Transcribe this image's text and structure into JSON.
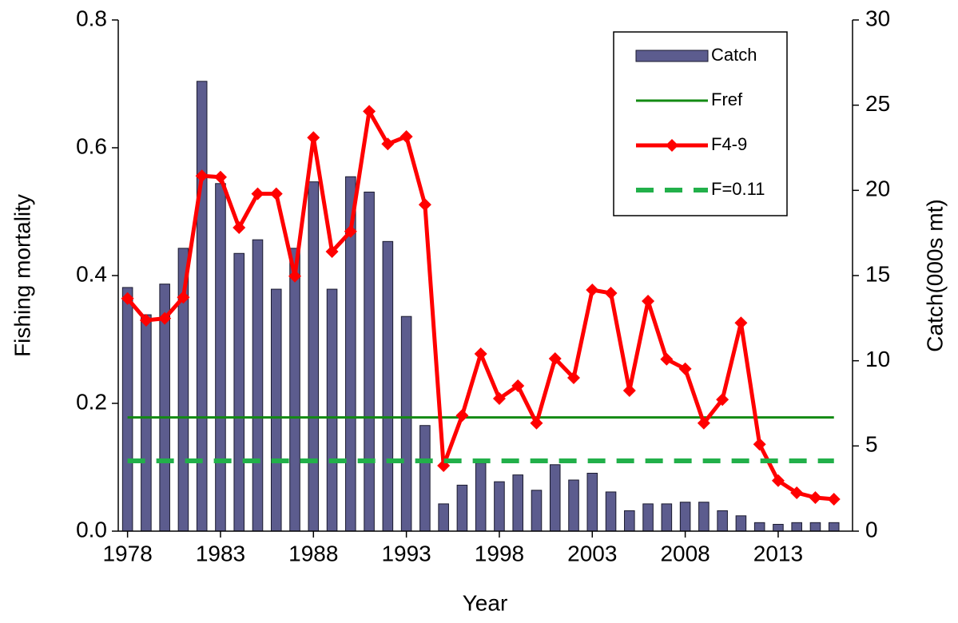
{
  "chart_data": {
    "type": "combo",
    "x_label": "Year",
    "y_label": "Fishing mortality",
    "y2_label": "Catch(000s mt)",
    "x": [
      1978,
      1979,
      1980,
      1981,
      1982,
      1983,
      1984,
      1985,
      1986,
      1987,
      1988,
      1989,
      1990,
      1991,
      1992,
      1993,
      1994,
      1995,
      1996,
      1997,
      1998,
      1999,
      2000,
      2001,
      2002,
      2003,
      2004,
      2005,
      2006,
      2007,
      2008,
      2009,
      2010,
      2011,
      2012,
      2013,
      2014,
      2015,
      2016
    ],
    "xlim": [
      1977.5,
      2017
    ],
    "xticks": [
      1978,
      1983,
      1988,
      1993,
      1998,
      2003,
      2008,
      2013
    ],
    "ylim": [
      0,
      0.8
    ],
    "yticks": [
      {
        "value": 0,
        "label": "0.0"
      },
      0.2,
      0.4,
      0.6,
      0.8
    ],
    "y2lim": [
      0,
      30
    ],
    "y2ticks": [
      0,
      5,
      10,
      15,
      20,
      25,
      30
    ],
    "legend": "upper right",
    "series": [
      {
        "name": "Catch",
        "type": "bar",
        "axis": "y2",
        "color": "#5c5c8e",
        "values": [
          14.3,
          12.7,
          14.5,
          16.6,
          26.4,
          20.4,
          16.3,
          17.1,
          14.2,
          16.6,
          20.5,
          14.2,
          20.8,
          19.9,
          17.0,
          12.6,
          6.2,
          1.6,
          2.7,
          4.0,
          2.9,
          3.3,
          2.4,
          3.9,
          3.0,
          3.4,
          2.3,
          1.2,
          1.6,
          1.6,
          1.7,
          1.7,
          1.2,
          0.9,
          0.5,
          0.4,
          0.5,
          0.5,
          0.5
        ]
      },
      {
        "name": "Fref",
        "type": "line",
        "color": "#138a13",
        "dash": false,
        "marker": "none",
        "values": [
          0.178,
          0.178,
          0.178,
          0.178,
          0.178,
          0.178,
          0.178,
          0.178,
          0.178,
          0.178,
          0.178,
          0.178,
          0.178,
          0.178,
          0.178,
          0.178,
          0.178,
          0.178,
          0.178,
          0.178,
          0.178,
          0.178,
          0.178,
          0.178,
          0.178,
          0.178,
          0.178,
          0.178,
          0.178,
          0.178,
          0.178,
          0.178,
          0.178,
          0.178,
          0.178,
          0.178,
          0.178,
          0.178,
          0.178
        ]
      },
      {
        "name": "F4-9",
        "type": "line",
        "color": "#ff0000",
        "dash": false,
        "marker": "diamond",
        "values": [
          0.364,
          0.33,
          0.333,
          0.366,
          0.556,
          0.554,
          0.475,
          0.528,
          0.528,
          0.399,
          0.616,
          0.4375,
          0.469,
          0.657,
          0.606,
          0.6175,
          0.511,
          0.1025,
          0.181,
          0.2775,
          0.2075,
          0.2275,
          0.169,
          0.27,
          0.24,
          0.3775,
          0.3725,
          0.22,
          0.36,
          0.269,
          0.254,
          0.169,
          0.206,
          0.326,
          0.136,
          0.079,
          0.06,
          0.0525,
          0.05
        ]
      },
      {
        "name": "F=0.11",
        "type": "line",
        "color": "#22b04a",
        "dash": true,
        "marker": "none",
        "values": [
          0.11,
          0.11,
          0.11,
          0.11,
          0.11,
          0.11,
          0.11,
          0.11,
          0.11,
          0.11,
          0.11,
          0.11,
          0.11,
          0.11,
          0.11,
          0.11,
          0.11,
          0.11,
          0.11,
          0.11,
          0.11,
          0.11,
          0.11,
          0.11,
          0.11,
          0.11,
          0.11,
          0.11,
          0.11,
          0.11,
          0.11,
          0.11,
          0.11,
          0.11,
          0.11,
          0.11,
          0.11,
          0.11,
          0.11
        ]
      }
    ]
  }
}
